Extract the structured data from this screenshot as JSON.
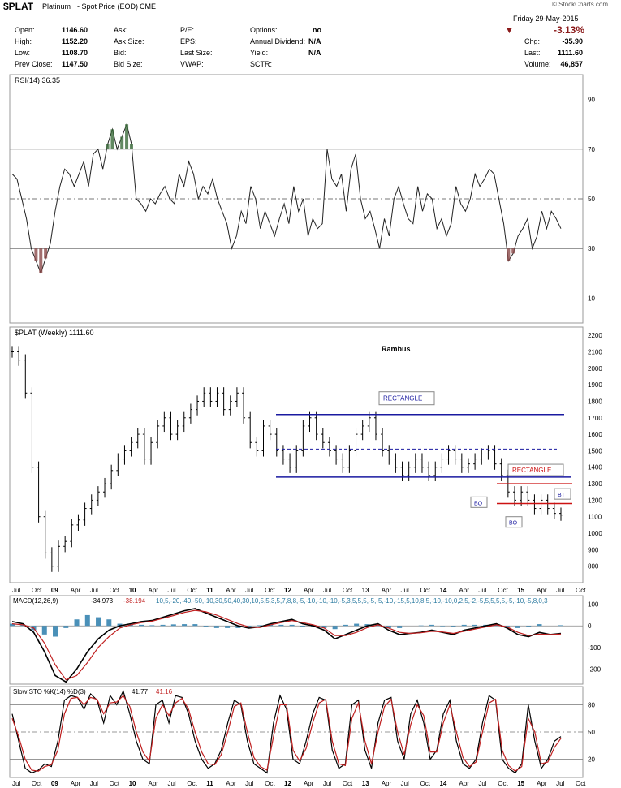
{
  "header": {
    "symbol": "$PLAT",
    "name": "Platinum",
    "subtitle": "- Spot Price (EOD)",
    "exchange": "CME",
    "watermark": "© StockCharts.com",
    "date": "Friday 29-May-2015",
    "change_pct": "-3.13%",
    "down_color": "#8b1a1a",
    "fields": {
      "open_label": "Open:",
      "open": "1146.60",
      "high_label": "High:",
      "high": "1152.20",
      "low_label": "Low:",
      "low": "1108.70",
      "prev_label": "Prev Close:",
      "prev": "1147.50",
      "ask_label": "Ask:",
      "asksize_label": "Ask Size:",
      "bid_label": "Bid:",
      "bidsize_label": "Bid Size:",
      "pe_label": "P/E:",
      "eps_label": "EPS:",
      "lastsize_label": "Last Size:",
      "vwap_label": "VWAP:",
      "options_label": "Options:",
      "options": "no",
      "div_label": "Annual Dividend:",
      "div": "N/A",
      "yield_label": "Yield:",
      "yield": "N/A",
      "sctr_label": "SCTR:",
      "chg_label": "Chg:",
      "chg": "-35.90",
      "last_label": "Last:",
      "last": "1111.60",
      "vol_label": "Volume:",
      "vol": "46,857"
    }
  },
  "chart_data": [
    {
      "type": "line",
      "title": "RSI(14) 36.35",
      "ylim": [
        0,
        100
      ],
      "yticks": [
        90,
        70,
        50,
        30,
        10
      ],
      "ref_lines": [
        70,
        50,
        30
      ],
      "series": [
        {
          "values": [
            60,
            58,
            50,
            42,
            30,
            25,
            20,
            26,
            32,
            45,
            55,
            62,
            60,
            55,
            60,
            65,
            55,
            68,
            70,
            62,
            72,
            78,
            70,
            75,
            80,
            72,
            50,
            48,
            45,
            50,
            48,
            52,
            55,
            50,
            48,
            60,
            55,
            65,
            60,
            50,
            55,
            52,
            58,
            50,
            45,
            40,
            30,
            35,
            45,
            40,
            55,
            50,
            38,
            45,
            40,
            35,
            42,
            48,
            40,
            55,
            45,
            50,
            35,
            42,
            38,
            40,
            70,
            58,
            55,
            60,
            45,
            62,
            68,
            50,
            42,
            45,
            38,
            30,
            42,
            35,
            50,
            55,
            48,
            42,
            40,
            55,
            45,
            52,
            50,
            38,
            42,
            35,
            40,
            55,
            48,
            45,
            50,
            60,
            55,
            58,
            62,
            60,
            50,
            40,
            25,
            28,
            35,
            38,
            42,
            30,
            35,
            45,
            38,
            45,
            42,
            38
          ]
        }
      ]
    },
    {
      "type": "ohlc",
      "title": "$PLAT (Weekly) 1111.60",
      "annotation_title": "Rambus",
      "ylim": [
        700,
        2250
      ],
      "yticks": [
        2200,
        2100,
        2000,
        1900,
        1800,
        1700,
        1600,
        1500,
        1400,
        1300,
        1200,
        1100,
        1000,
        900,
        800
      ],
      "x_labels": [
        "Jul",
        "Oct",
        "09",
        "Apr",
        "Jul",
        "Oct",
        "10",
        "Apr",
        "Jul",
        "Oct",
        "11",
        "Apr",
        "Jul",
        "Oct",
        "12",
        "Apr",
        "Jul",
        "Oct",
        "13",
        "Apr",
        "Jul",
        "Oct",
        "14",
        "Apr",
        "Jul",
        "Oct",
        "15",
        "Apr",
        "Jul",
        "Oct"
      ],
      "closes": [
        2100,
        2050,
        1850,
        1400,
        1100,
        880,
        800,
        920,
        950,
        1050,
        1080,
        1150,
        1200,
        1250,
        1300,
        1380,
        1450,
        1500,
        1550,
        1600,
        1450,
        1550,
        1650,
        1700,
        1600,
        1650,
        1700,
        1750,
        1800,
        1850,
        1800,
        1850,
        1750,
        1800,
        1850,
        1700,
        1550,
        1500,
        1650,
        1600,
        1500,
        1450,
        1400,
        1500,
        1650,
        1700,
        1600,
        1550,
        1500,
        1450,
        1400,
        1500,
        1600,
        1650,
        1700,
        1600,
        1500,
        1450,
        1400,
        1350,
        1400,
        1450,
        1400,
        1350,
        1400,
        1450,
        1500,
        1450,
        1400,
        1420,
        1450,
        1480,
        1500,
        1420,
        1350,
        1250,
        1200,
        1250,
        1200,
        1150,
        1200,
        1150,
        1120,
        1110
      ],
      "levels": [
        {
          "label": "RECTANGLE",
          "top": 1720,
          "bottom": 1340,
          "mid": 1510,
          "color": "#1a1aa0"
        },
        {
          "label": "RECTANGLE",
          "top": 1300,
          "bottom": 1180,
          "color": "#cc1111"
        }
      ],
      "annotations": [
        "BO",
        "BO",
        "BT"
      ]
    },
    {
      "type": "line",
      "title": "MACD(12,26,9)",
      "macd": "-34.973",
      "signal": "-38.194",
      "hist": [
        10,
        5,
        -20,
        -40,
        -50,
        -10,
        30,
        50,
        40,
        30,
        10,
        5,
        5,
        3,
        5,
        7,
        8,
        8,
        -5,
        -10,
        -10,
        -10,
        -5,
        3,
        5,
        5,
        5,
        -5,
        -5,
        -10,
        -15,
        5,
        10,
        8,
        5,
        -10,
        -10,
        0,
        2,
        5,
        -2,
        -5,
        5,
        5,
        5,
        5,
        -5,
        -10,
        -5,
        8,
        0,
        3
      ],
      "ylim": [
        -270,
        140
      ],
      "yticks": [
        100,
        0,
        -100,
        -200
      ],
      "series": [
        {
          "values": [
            20,
            10,
            -30,
            -120,
            -230,
            -260,
            -200,
            -120,
            -60,
            -20,
            0,
            10,
            20,
            25,
            40,
            55,
            70,
            80,
            60,
            40,
            20,
            0,
            -10,
            -5,
            10,
            20,
            30,
            10,
            0,
            -20,
            -60,
            -40,
            -20,
            0,
            10,
            -20,
            -40,
            -35,
            -30,
            -20,
            -30,
            -40,
            -20,
            -10,
            0,
            10,
            -10,
            -40,
            -50,
            -30,
            -40,
            -35
          ]
        },
        {
          "values": [
            10,
            5,
            -10,
            -80,
            -180,
            -250,
            -230,
            -170,
            -100,
            -50,
            -10,
            5,
            15,
            22,
            35,
            48,
            62,
            72,
            65,
            50,
            30,
            10,
            -5,
            -8,
            5,
            15,
            25,
            15,
            5,
            -10,
            -45,
            -45,
            -30,
            -8,
            5,
            -10,
            -30,
            -35,
            -32,
            -25,
            -28,
            -35,
            -25,
            -15,
            -5,
            5,
            -5,
            -30,
            -45,
            -38,
            -40,
            -38
          ]
        }
      ]
    },
    {
      "type": "line",
      "title": "Slow STO %K(14) %D(3)",
      "k": "41.77",
      "d": "41.16",
      "ylim": [
        0,
        100
      ],
      "yticks": [
        80,
        50,
        20
      ],
      "ref_lines": [
        80,
        50,
        20
      ],
      "series": [
        {
          "values": [
            70,
            40,
            10,
            5,
            8,
            15,
            12,
            40,
            85,
            90,
            88,
            75,
            92,
            85,
            60,
            90,
            80,
            95,
            70,
            40,
            20,
            15,
            80,
            85,
            60,
            90,
            88,
            70,
            40,
            20,
            10,
            15,
            30,
            60,
            85,
            80,
            40,
            15,
            10,
            5,
            60,
            90,
            75,
            20,
            15,
            40,
            70,
            88,
            85,
            30,
            10,
            15,
            80,
            85,
            30,
            10,
            60,
            85,
            88,
            40,
            20,
            70,
            85,
            60,
            20,
            30,
            70,
            85,
            40,
            15,
            10,
            20,
            60,
            90,
            85,
            20,
            10,
            5,
            15,
            80,
            40,
            10,
            20,
            40,
            45
          ]
        },
        {
          "values": [
            65,
            45,
            20,
            8,
            7,
            12,
            14,
            30,
            70,
            87,
            88,
            80,
            88,
            86,
            70,
            82,
            83,
            90,
            78,
            50,
            28,
            18,
            65,
            80,
            68,
            82,
            87,
            75,
            50,
            28,
            15,
            14,
            25,
            50,
            78,
            82,
            50,
            22,
            12,
            8,
            45,
            80,
            80,
            30,
            18,
            32,
            60,
            82,
            86,
            40,
            15,
            13,
            65,
            82,
            40,
            15,
            50,
            78,
            86,
            50,
            25,
            58,
            80,
            68,
            28,
            28,
            60,
            80,
            50,
            22,
            12,
            17,
            50,
            82,
            86,
            30,
            13,
            7,
            12,
            65,
            50,
            15,
            17,
            33,
            43
          ]
        }
      ]
    }
  ],
  "x_axis_bottom": [
    "Jul",
    "Oct",
    "09",
    "Apr",
    "Jul",
    "Oct",
    "10",
    "Apr",
    "Jul",
    "Oct",
    "11",
    "Apr",
    "Jul",
    "Oct",
    "12",
    "Apr",
    "Jul",
    "Oct",
    "13",
    "Apr",
    "Jul",
    "Oct",
    "14",
    "Apr",
    "Jul",
    "Oct",
    "15",
    "Apr",
    "Jul",
    "Oct"
  ]
}
